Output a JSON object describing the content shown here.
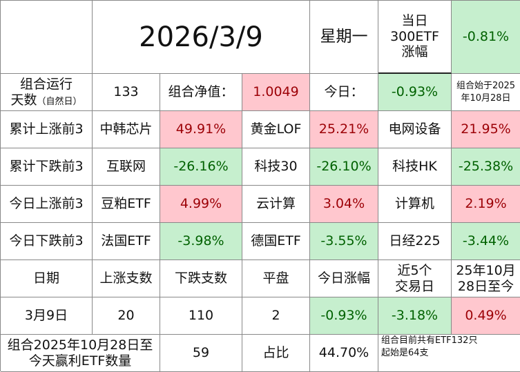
{
  "header": {
    "date": "2026/3/9",
    "weekday": "星期一",
    "index_label_line1": "当日",
    "index_label_line2": "300ETF",
    "index_label_line3": "涨幅",
    "index_change": "-0.81%"
  },
  "summary": {
    "run_days_label_line1": "组合运行",
    "run_days_label_line2": "天数",
    "run_days_label_note": "（自然日）",
    "run_days": "133",
    "nav_label": "组合净值：",
    "nav_value": "1.0049",
    "today_label": "今日：",
    "today_change": "-0.93%",
    "start_note_line1": "组合始于2025",
    "start_note_line2": "年10月28日"
  },
  "rankings": [
    {
      "label": "累计上涨前3",
      "items": [
        {
          "name": "中韩芯片",
          "value": "49.91%",
          "tone": "red"
        },
        {
          "name": "黄金LOF",
          "value": "25.21%",
          "tone": "red"
        },
        {
          "name": "电网设备",
          "value": "21.95%",
          "tone": "red"
        }
      ]
    },
    {
      "label": "累计下跌前3",
      "items": [
        {
          "name": "互联网",
          "value": "-26.16%",
          "tone": "green"
        },
        {
          "name": "科技30",
          "value": "-26.10%",
          "tone": "green"
        },
        {
          "name": "科技HK",
          "value": "-25.38%",
          "tone": "green"
        }
      ]
    },
    {
      "label": "今日上涨前3",
      "items": [
        {
          "name": "豆粕ETF",
          "value": "4.99%",
          "tone": "red"
        },
        {
          "name": "云计算",
          "value": "3.04%",
          "tone": "red"
        },
        {
          "name": "计算机",
          "value": "2.19%",
          "tone": "red"
        }
      ]
    },
    {
      "label": "今日下跌前3",
      "items": [
        {
          "name": "法国ETF",
          "value": "-3.98%",
          "tone": "green"
        },
        {
          "name": "德国ETF",
          "value": "-3.55%",
          "tone": "green"
        },
        {
          "name": "日经225",
          "value": "-3.44%",
          "tone": "green"
        }
      ]
    }
  ],
  "stats_header": {
    "col_date": "日期",
    "col_up": "上涨支数",
    "col_down": "下跌支数",
    "col_flat": "平盘",
    "col_today": "今日涨幅",
    "col_5d_line1": "近5个",
    "col_5d_line2": "交易日",
    "col_since_line1": "25年10月",
    "col_since_line2": "28日至今"
  },
  "stats_row": {
    "date": "3月9日",
    "up": "20",
    "down": "110",
    "flat": "2",
    "today": "-0.93%",
    "five_day": "-3.18%",
    "since_start": "0.49%"
  },
  "footer": {
    "profit_label_line1": "组合2025年10月28日至",
    "profit_label_line2": "今天赢利ETF数量",
    "profit_count": "59",
    "ratio_label": "占比",
    "ratio_value": "44.70%",
    "note_line1": "组合目前共有ETF132只",
    "note_line2": "起始是64支"
  },
  "colors": {
    "up_bg": "#ffc7ce",
    "up_text": "#9c0006",
    "down_bg": "#c6efce",
    "down_text": "#006100"
  }
}
